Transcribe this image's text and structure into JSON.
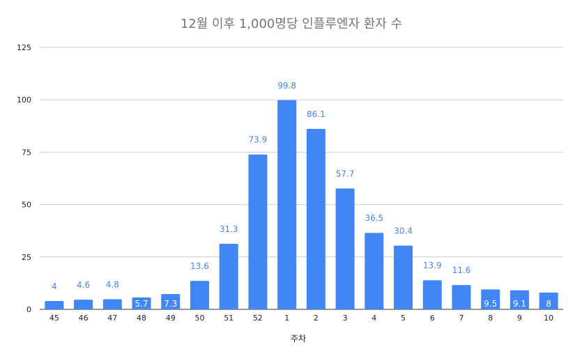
{
  "chart_data": {
    "type": "bar",
    "title": "12월 이후 1,000명당 인플루엔자 환자 수",
    "xlabel": "주차",
    "ylabel": "",
    "ylim": [
      0,
      125
    ],
    "yticks": [
      0,
      25,
      50,
      75,
      100,
      125
    ],
    "grid": true,
    "legend": "none",
    "bar_color": "#4285f4",
    "gridline_color": "#cccccc",
    "label_color_outside": "#4a86e8",
    "label_color_inside": "#ffffff",
    "categories": [
      "45",
      "46",
      "47",
      "48",
      "49",
      "50",
      "51",
      "52",
      "1",
      "2",
      "3",
      "4",
      "5",
      "6",
      "7",
      "8",
      "9",
      "10"
    ],
    "values": [
      4,
      4.6,
      4.8,
      5.7,
      7.3,
      13.6,
      31.3,
      73.9,
      99.8,
      86.1,
      57.7,
      36.5,
      30.4,
      13.9,
      11.6,
      9.5,
      9.1,
      8
    ],
    "value_labels": [
      "4",
      "4.6",
      "4.8",
      "5.7",
      "7.3",
      "13.6",
      "31.3",
      "73.9",
      "99.8",
      "86.1",
      "57.7",
      "36.5",
      "30.4",
      "13.9",
      "11.6",
      "9.5",
      "9.1",
      "8"
    ]
  }
}
